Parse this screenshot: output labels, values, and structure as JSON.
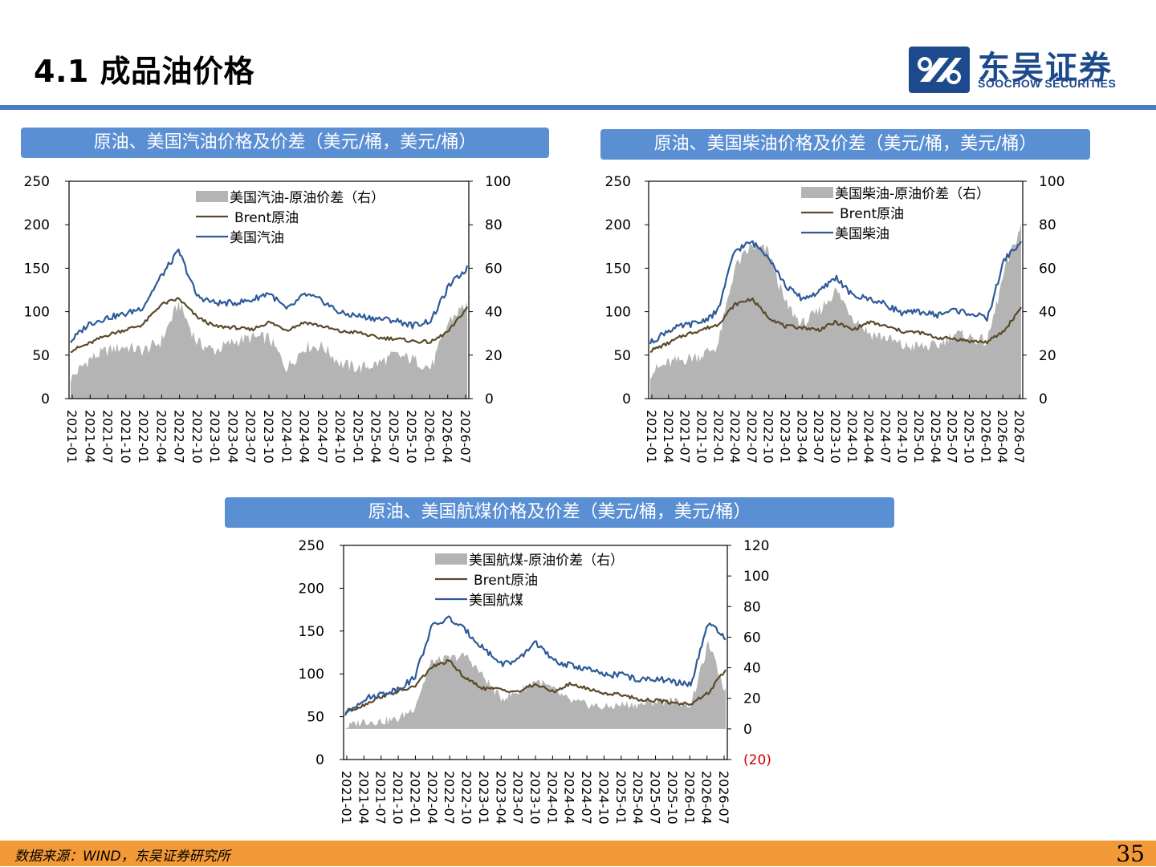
{
  "page": {
    "title": "4.1 成品油价格",
    "page_number": "35"
  },
  "logo": {
    "name_cn": "东吴证券",
    "name_en": "SOOCHOW SECURITIES"
  },
  "footer": {
    "source": "数据来源：WIND，东吴证券研究所"
  },
  "colors": {
    "crude": "#5b4a2a",
    "product": "#2e5a99",
    "spread_fill": "#b4b4b4",
    "header": "#5b8fd4",
    "rule": "#4a7cc0",
    "footer": "#f29a38",
    "negative_tick": "#d00000"
  },
  "chart_data": [
    {
      "type": "line",
      "title": "原油、美国汽油价格及价差（美元/桶，美元/桶）",
      "x_labels": [
        "2021-01",
        "2021-04",
        "2021-07",
        "2021-10",
        "2022-01",
        "2022-04",
        "2022-07",
        "2022-10",
        "2023-01",
        "2023-04",
        "2023-07",
        "2023-10",
        "2024-01",
        "2024-04",
        "2024-07",
        "2024-10",
        "2025-01",
        "2025-04",
        "2025-07",
        "2025-10",
        "2026-01",
        "2026-04",
        "2026-07"
      ],
      "ylim_left": [
        0,
        250
      ],
      "yticks_left": [
        "0",
        "50",
        "100",
        "150",
        "200",
        "250"
      ],
      "ylim_right": [
        0,
        100
      ],
      "yticks_right": [
        "0",
        "20",
        "40",
        "60",
        "80",
        "100"
      ],
      "legend": [
        "美国汽油-原油价差（右）",
        "Brent原油",
        "美国汽油"
      ],
      "series": [
        {
          "name": "Brent原油",
          "axis": "left",
          "values": [
            55,
            63,
            73,
            79,
            85,
            108,
            115,
            94,
            83,
            82,
            79,
            88,
            79,
            88,
            83,
            77,
            76,
            70,
            69,
            66,
            65,
            78,
            105
          ]
        },
        {
          "name": "美国汽油",
          "axis": "left",
          "values": [
            66,
            86,
            93,
            97,
            105,
            140,
            170,
            118,
            110,
            110,
            113,
            122,
            102,
            120,
            112,
            98,
            95,
            92,
            90,
            84,
            90,
            130,
            150
          ]
        },
        {
          "name": "美国汽油-原油价差（右）",
          "axis": "right",
          "values": [
            9,
            18,
            22,
            24,
            22,
            26,
            44,
            26,
            22,
            26,
            28,
            28,
            14,
            24,
            24,
            16,
            14,
            16,
            20,
            18,
            14,
            36,
            44
          ]
        }
      ]
    },
    {
      "type": "line",
      "title": "原油、美国柴油价格及价差（美元/桶，美元/桶）",
      "x_labels": [
        "2021-01",
        "2021-04",
        "2021-07",
        "2021-10",
        "2022-01",
        "2022-04",
        "2022-07",
        "2022-10",
        "2023-01",
        "2023-04",
        "2023-07",
        "2023-10",
        "2024-01",
        "2024-04",
        "2024-07",
        "2024-10",
        "2025-01",
        "2025-04",
        "2025-07",
        "2025-10",
        "2026-01",
        "2026-04",
        "2026-07"
      ],
      "ylim_left": [
        0,
        250
      ],
      "yticks_left": [
        "0",
        "50",
        "100",
        "150",
        "200",
        "250"
      ],
      "ylim_right": [
        0,
        100
      ],
      "yticks_right": [
        "0",
        "20",
        "40",
        "60",
        "80",
        "100"
      ],
      "legend": [
        "美国柴油-原油价差（右）",
        "Brent原油",
        "美国柴油"
      ],
      "series": [
        {
          "name": "Brent原油",
          "axis": "left",
          "values": [
            55,
            63,
            73,
            79,
            85,
            108,
            115,
            94,
            83,
            82,
            79,
            88,
            79,
            88,
            83,
            77,
            76,
            70,
            69,
            66,
            65,
            78,
            105
          ]
        },
        {
          "name": "美国柴油",
          "axis": "left",
          "values": [
            64,
            78,
            84,
            88,
            100,
            170,
            180,
            165,
            130,
            115,
            122,
            140,
            118,
            115,
            108,
            98,
            100,
            96,
            102,
            98,
            92,
            160,
            180
          ]
        },
        {
          "name": "美国柴油-原油价差（右）",
          "axis": "right",
          "values": [
            12,
            16,
            18,
            20,
            24,
            60,
            70,
            68,
            44,
            34,
            40,
            50,
            38,
            30,
            28,
            24,
            24,
            24,
            30,
            28,
            26,
            58,
            80
          ]
        }
      ]
    },
    {
      "type": "line",
      "title": "原油、美国航煤价格及价差（美元/桶，美元/桶）",
      "x_labels": [
        "2021-01",
        "2021-04",
        "2021-07",
        "2021-10",
        "2022-01",
        "2022-04",
        "2022-07",
        "2022-10",
        "2023-01",
        "2023-04",
        "2023-07",
        "2023-10",
        "2024-01",
        "2024-04",
        "2024-07",
        "2024-10",
        "2025-01",
        "2025-04",
        "2025-07",
        "2025-10",
        "2026-01",
        "2026-04",
        "2026-07"
      ],
      "ylim_left": [
        0,
        250
      ],
      "yticks_left": [
        "0",
        "50",
        "100",
        "150",
        "200",
        "250"
      ],
      "ylim_right": [
        -20,
        120
      ],
      "yticks_right": [
        "(20)",
        "0",
        "20",
        "40",
        "60",
        "80",
        "100",
        "120"
      ],
      "legend": [
        "美国航煤-原油价差（右）",
        "Brent原油",
        "美国航煤"
      ],
      "series": [
        {
          "name": "Brent原油",
          "axis": "left",
          "values": [
            55,
            63,
            73,
            79,
            85,
            108,
            115,
            94,
            83,
            82,
            79,
            88,
            79,
            88,
            83,
            77,
            76,
            70,
            69,
            66,
            65,
            78,
            105
          ]
        },
        {
          "name": "美国航煤",
          "axis": "left",
          "values": [
            53,
            70,
            76,
            82,
            95,
            155,
            165,
            150,
            130,
            112,
            115,
            138,
            115,
            110,
            106,
            98,
            100,
            92,
            95,
            90,
            88,
            160,
            140
          ]
        },
        {
          "name": "美国航煤-原油价差（右）",
          "axis": "right",
          "values": [
            1,
            5,
            5,
            6,
            14,
            44,
            46,
            48,
            34,
            20,
            24,
            32,
            26,
            18,
            16,
            14,
            16,
            16,
            18,
            18,
            16,
            56,
            24
          ]
        }
      ]
    }
  ]
}
